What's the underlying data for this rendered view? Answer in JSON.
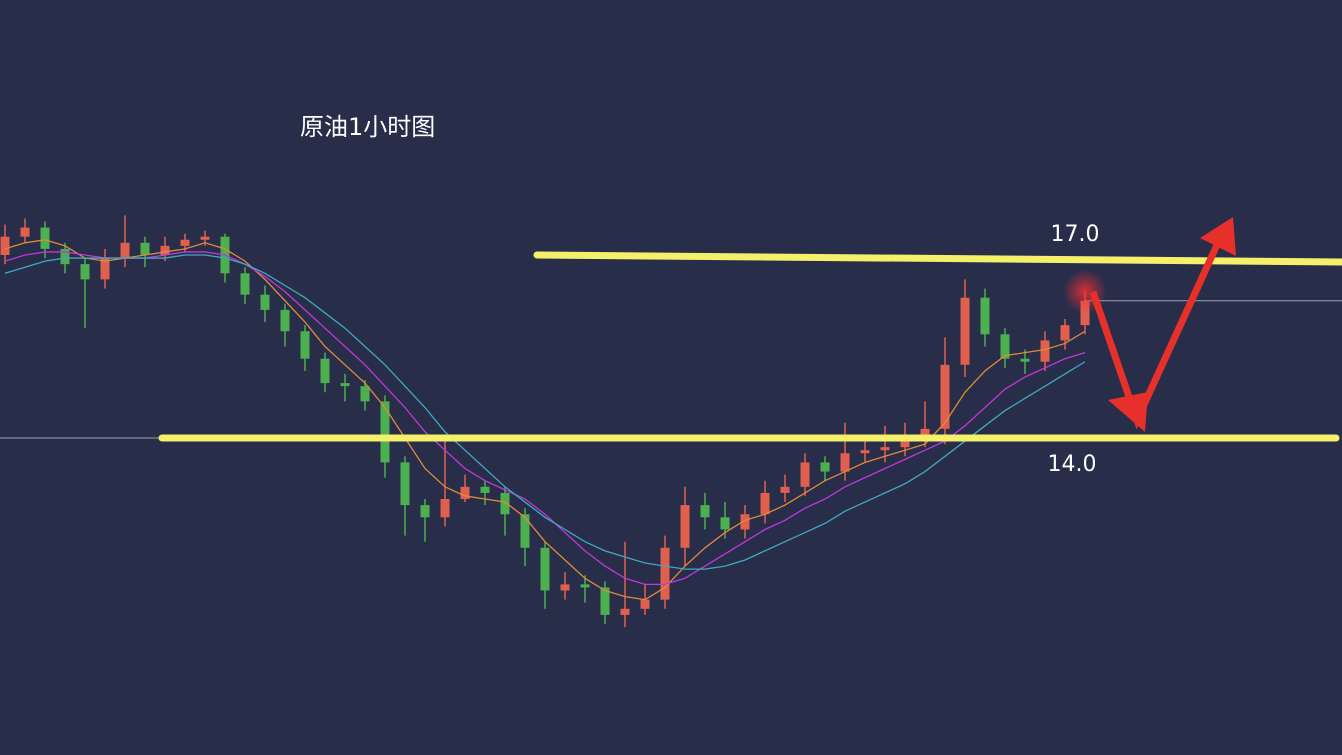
{
  "chart_data": {
    "type": "candlestick",
    "title": "原油1小时图",
    "up_color": "#e0604f",
    "down_color": "#4caf50",
    "open": [
      17.0,
      17.3,
      17.45,
      17.1,
      16.85,
      16.6,
      16.95,
      17.2,
      17.0,
      17.15,
      17.25,
      17.3,
      16.7,
      16.35,
      16.1,
      15.75,
      15.3,
      14.9,
      14.85,
      14.6,
      13.6,
      12.9,
      12.7,
      13.0,
      13.2,
      13.1,
      12.75,
      12.2,
      11.5,
      11.6,
      11.55,
      11.1,
      11.2,
      11.35,
      12.2,
      12.9,
      12.7,
      12.5,
      12.75,
      13.1,
      13.2,
      13.6,
      13.45,
      13.75,
      13.8,
      13.85,
      14.0,
      14.15,
      15.2,
      16.3,
      15.7,
      15.3,
      15.25,
      15.6,
      15.85
    ],
    "high": [
      17.5,
      17.6,
      17.55,
      17.2,
      16.95,
      17.1,
      17.65,
      17.3,
      17.3,
      17.35,
      17.4,
      17.35,
      16.8,
      16.5,
      16.2,
      15.85,
      15.4,
      15.05,
      14.95,
      14.7,
      13.7,
      13.0,
      13.95,
      13.4,
      13.3,
      13.2,
      12.85,
      12.3,
      11.8,
      11.75,
      11.65,
      12.3,
      11.6,
      12.4,
      13.2,
      13.1,
      12.95,
      12.9,
      13.3,
      13.4,
      13.75,
      13.7,
      14.25,
      14.0,
      14.2,
      14.25,
      14.6,
      15.65,
      16.6,
      16.45,
      15.8,
      15.45,
      15.75,
      15.95,
      16.4
    ],
    "low": [
      16.85,
      17.2,
      16.95,
      16.7,
      15.8,
      16.45,
      16.8,
      16.8,
      16.9,
      17.05,
      17.15,
      16.55,
      16.2,
      15.9,
      15.5,
      15.1,
      14.75,
      14.6,
      14.45,
      13.35,
      12.4,
      12.3,
      12.55,
      12.95,
      12.9,
      12.4,
      11.9,
      11.2,
      11.35,
      11.3,
      10.95,
      10.9,
      11.1,
      11.2,
      11.9,
      12.5,
      12.35,
      12.35,
      12.6,
      12.95,
      13.05,
      13.3,
      13.3,
      13.6,
      13.6,
      13.7,
      13.85,
      13.9,
      15.0,
      15.5,
      15.15,
      15.05,
      15.1,
      15.45,
      15.7
    ],
    "close": [
      17.3,
      17.45,
      17.1,
      16.85,
      16.6,
      16.95,
      17.2,
      17.0,
      17.15,
      17.25,
      17.3,
      16.7,
      16.35,
      16.1,
      15.75,
      15.3,
      14.9,
      14.85,
      14.6,
      13.6,
      12.9,
      12.7,
      13.0,
      13.2,
      13.1,
      12.75,
      12.2,
      11.5,
      11.6,
      11.55,
      11.1,
      11.2,
      11.35,
      12.2,
      12.9,
      12.7,
      12.5,
      12.75,
      13.1,
      13.2,
      13.6,
      13.45,
      13.75,
      13.8,
      13.85,
      14.0,
      14.15,
      15.2,
      16.3,
      15.7,
      15.3,
      15.25,
      15.6,
      15.85,
      16.25
    ],
    "lines": [
      {
        "color": "#e08a3a",
        "values": [
          17.1,
          17.2,
          17.25,
          17.15,
          16.95,
          16.9,
          16.95,
          17.0,
          17.05,
          17.1,
          17.2,
          17.1,
          16.9,
          16.6,
          16.25,
          15.9,
          15.5,
          15.2,
          14.9,
          14.5,
          14.0,
          13.5,
          13.2,
          13.05,
          13.0,
          12.95,
          12.7,
          12.3,
          12.0,
          11.7,
          11.5,
          11.4,
          11.35,
          11.55,
          11.9,
          12.2,
          12.45,
          12.65,
          12.75,
          12.9,
          13.1,
          13.3,
          13.45,
          13.6,
          13.7,
          13.8,
          13.9,
          14.25,
          14.75,
          15.1,
          15.35,
          15.4,
          15.45,
          15.55,
          15.75
        ]
      },
      {
        "color": "#c038d8",
        "values": [
          16.9,
          17.0,
          17.05,
          17.05,
          17.0,
          16.95,
          16.95,
          16.95,
          17.0,
          17.05,
          17.05,
          17.0,
          16.85,
          16.65,
          16.4,
          16.1,
          15.8,
          15.5,
          15.2,
          14.85,
          14.5,
          14.1,
          13.8,
          13.5,
          13.3,
          13.15,
          13.0,
          12.75,
          12.45,
          12.15,
          11.9,
          11.7,
          11.6,
          11.6,
          11.7,
          11.9,
          12.1,
          12.3,
          12.5,
          12.65,
          12.85,
          13.0,
          13.2,
          13.35,
          13.5,
          13.65,
          13.8,
          13.95,
          14.2,
          14.5,
          14.8,
          15.0,
          15.15,
          15.3,
          15.4
        ]
      },
      {
        "color": "#3fa9c0",
        "values": [
          16.7,
          16.8,
          16.9,
          16.95,
          16.95,
          16.95,
          16.95,
          16.95,
          16.95,
          17.0,
          17.0,
          16.95,
          16.85,
          16.7,
          16.5,
          16.3,
          16.05,
          15.8,
          15.5,
          15.2,
          14.85,
          14.5,
          14.1,
          13.8,
          13.5,
          13.2,
          12.95,
          12.7,
          12.5,
          12.3,
          12.15,
          12.05,
          11.95,
          11.9,
          11.85,
          11.85,
          11.9,
          12.0,
          12.15,
          12.3,
          12.45,
          12.6,
          12.8,
          12.95,
          13.1,
          13.25,
          13.45,
          13.7,
          13.95,
          14.2,
          14.45,
          14.65,
          14.85,
          15.05,
          15.25
        ]
      }
    ],
    "levels": [
      {
        "value": 17,
        "label": "17.0"
      },
      {
        "value": 14,
        "label": "14.0"
      }
    ],
    "level_color": "#f5f06a"
  }
}
